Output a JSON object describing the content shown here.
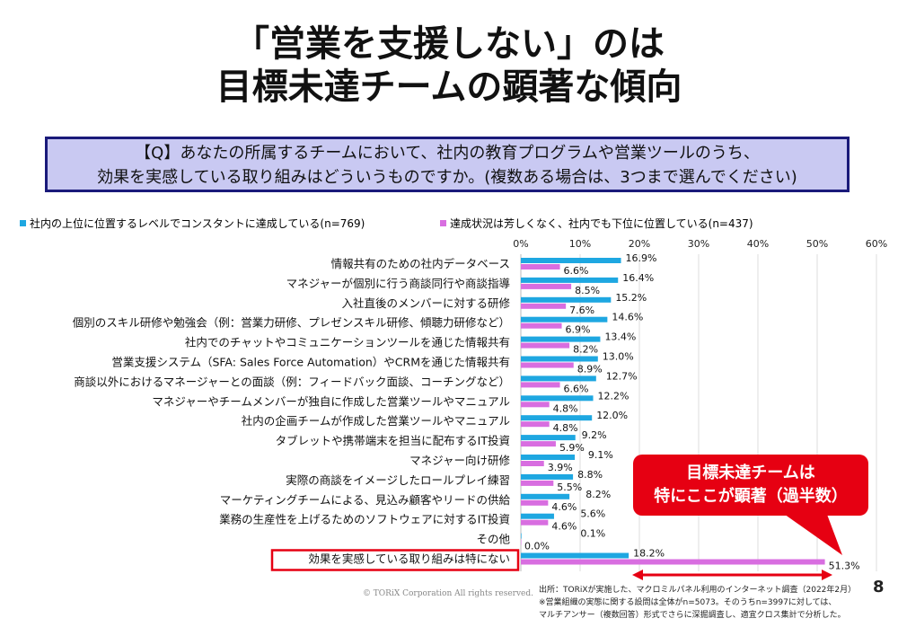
{
  "title": {
    "line1": "「営業を支援しない」のは",
    "line2": "目標未達チームの顕著な傾向"
  },
  "question": {
    "line1": "【Q】あなたの所属するチームにおいて、社内の教育プログラムや営業ツールのうち、",
    "line2": "効果を実感している取り組みはどういうものですか。(複数ある場合は、3つまで選んでください)"
  },
  "callout": {
    "line1": "目標未達チームは",
    "line2": "特にここが顕著（過半数）"
  },
  "footer": {
    "copyright": "© TORiX Corporation All rights reserved.",
    "page": "8",
    "source1": "出所：TORiXが実施した、マクロミルパネル利用のインターネット調査（2022年2月）",
    "source2": "※営業組織の実態に関する設問は全体がn=5073。そのうちn=3997に対しては、",
    "source3": "マルチアンサー（複数回答）形式でさらに深掘調査し、適宜クロス集計で分析した。"
  },
  "chart_data": {
    "type": "bar",
    "orientation": "horizontal",
    "xlim": [
      0,
      60
    ],
    "ticks": [
      "0%",
      "10%",
      "20%",
      "30%",
      "40%",
      "50%",
      "60%"
    ],
    "categories": [
      "情報共有のための社内データベース",
      "マネジャーが個別に行う商談同行や商談指導",
      "入社直後のメンバーに対する研修",
      "個別のスキル研修や勉強会（例：営業力研修、プレゼンスキル研修、傾聴力研修など）",
      "社内でのチャットやコミュニケーションツールを通じた情報共有",
      "営業支援システム（SFA: Sales Force Automation）やCRMを通じた情報共有",
      "商談以外におけるマネージャーとの面談（例：フィードバック面談、コーチングなど）",
      "マネジャーやチームメンバーが独自に作成した営業ツールやマニュアル",
      "社内の企画チームが作成した営業ツールやマニュアル",
      "タブレットや携帯端末を担当に配布するIT投資",
      "マネジャー向け研修",
      "実際の商談をイメージしたロールプレイ練習",
      "マーケティングチームによる、見込み顧客やリードの供給",
      "業務の生産性を上げるためのソフトウェアに対するIT投資",
      "その他",
      "効果を実感している取り組みは特にない"
    ],
    "series": [
      {
        "name": "社内の上位に位置するレベルでコンスタントに達成している(n=769)",
        "color": "#1ea7e1",
        "values": [
          16.9,
          16.4,
          15.2,
          14.6,
          13.4,
          13.0,
          12.7,
          12.2,
          12.0,
          9.2,
          9.1,
          8.8,
          8.2,
          5.6,
          0.1,
          18.2
        ]
      },
      {
        "name": "達成状況は芳しくなく、社内でも下位に位置している(n=437)",
        "color": "#d86ee0",
        "values": [
          6.6,
          8.5,
          7.6,
          6.9,
          8.2,
          8.9,
          6.6,
          4.8,
          4.8,
          5.9,
          3.9,
          5.5,
          4.6,
          4.6,
          0.0,
          51.3
        ]
      }
    ],
    "highlight_category": "効果を実感している取り組みは特にない",
    "grid": true,
    "legend": "top"
  }
}
